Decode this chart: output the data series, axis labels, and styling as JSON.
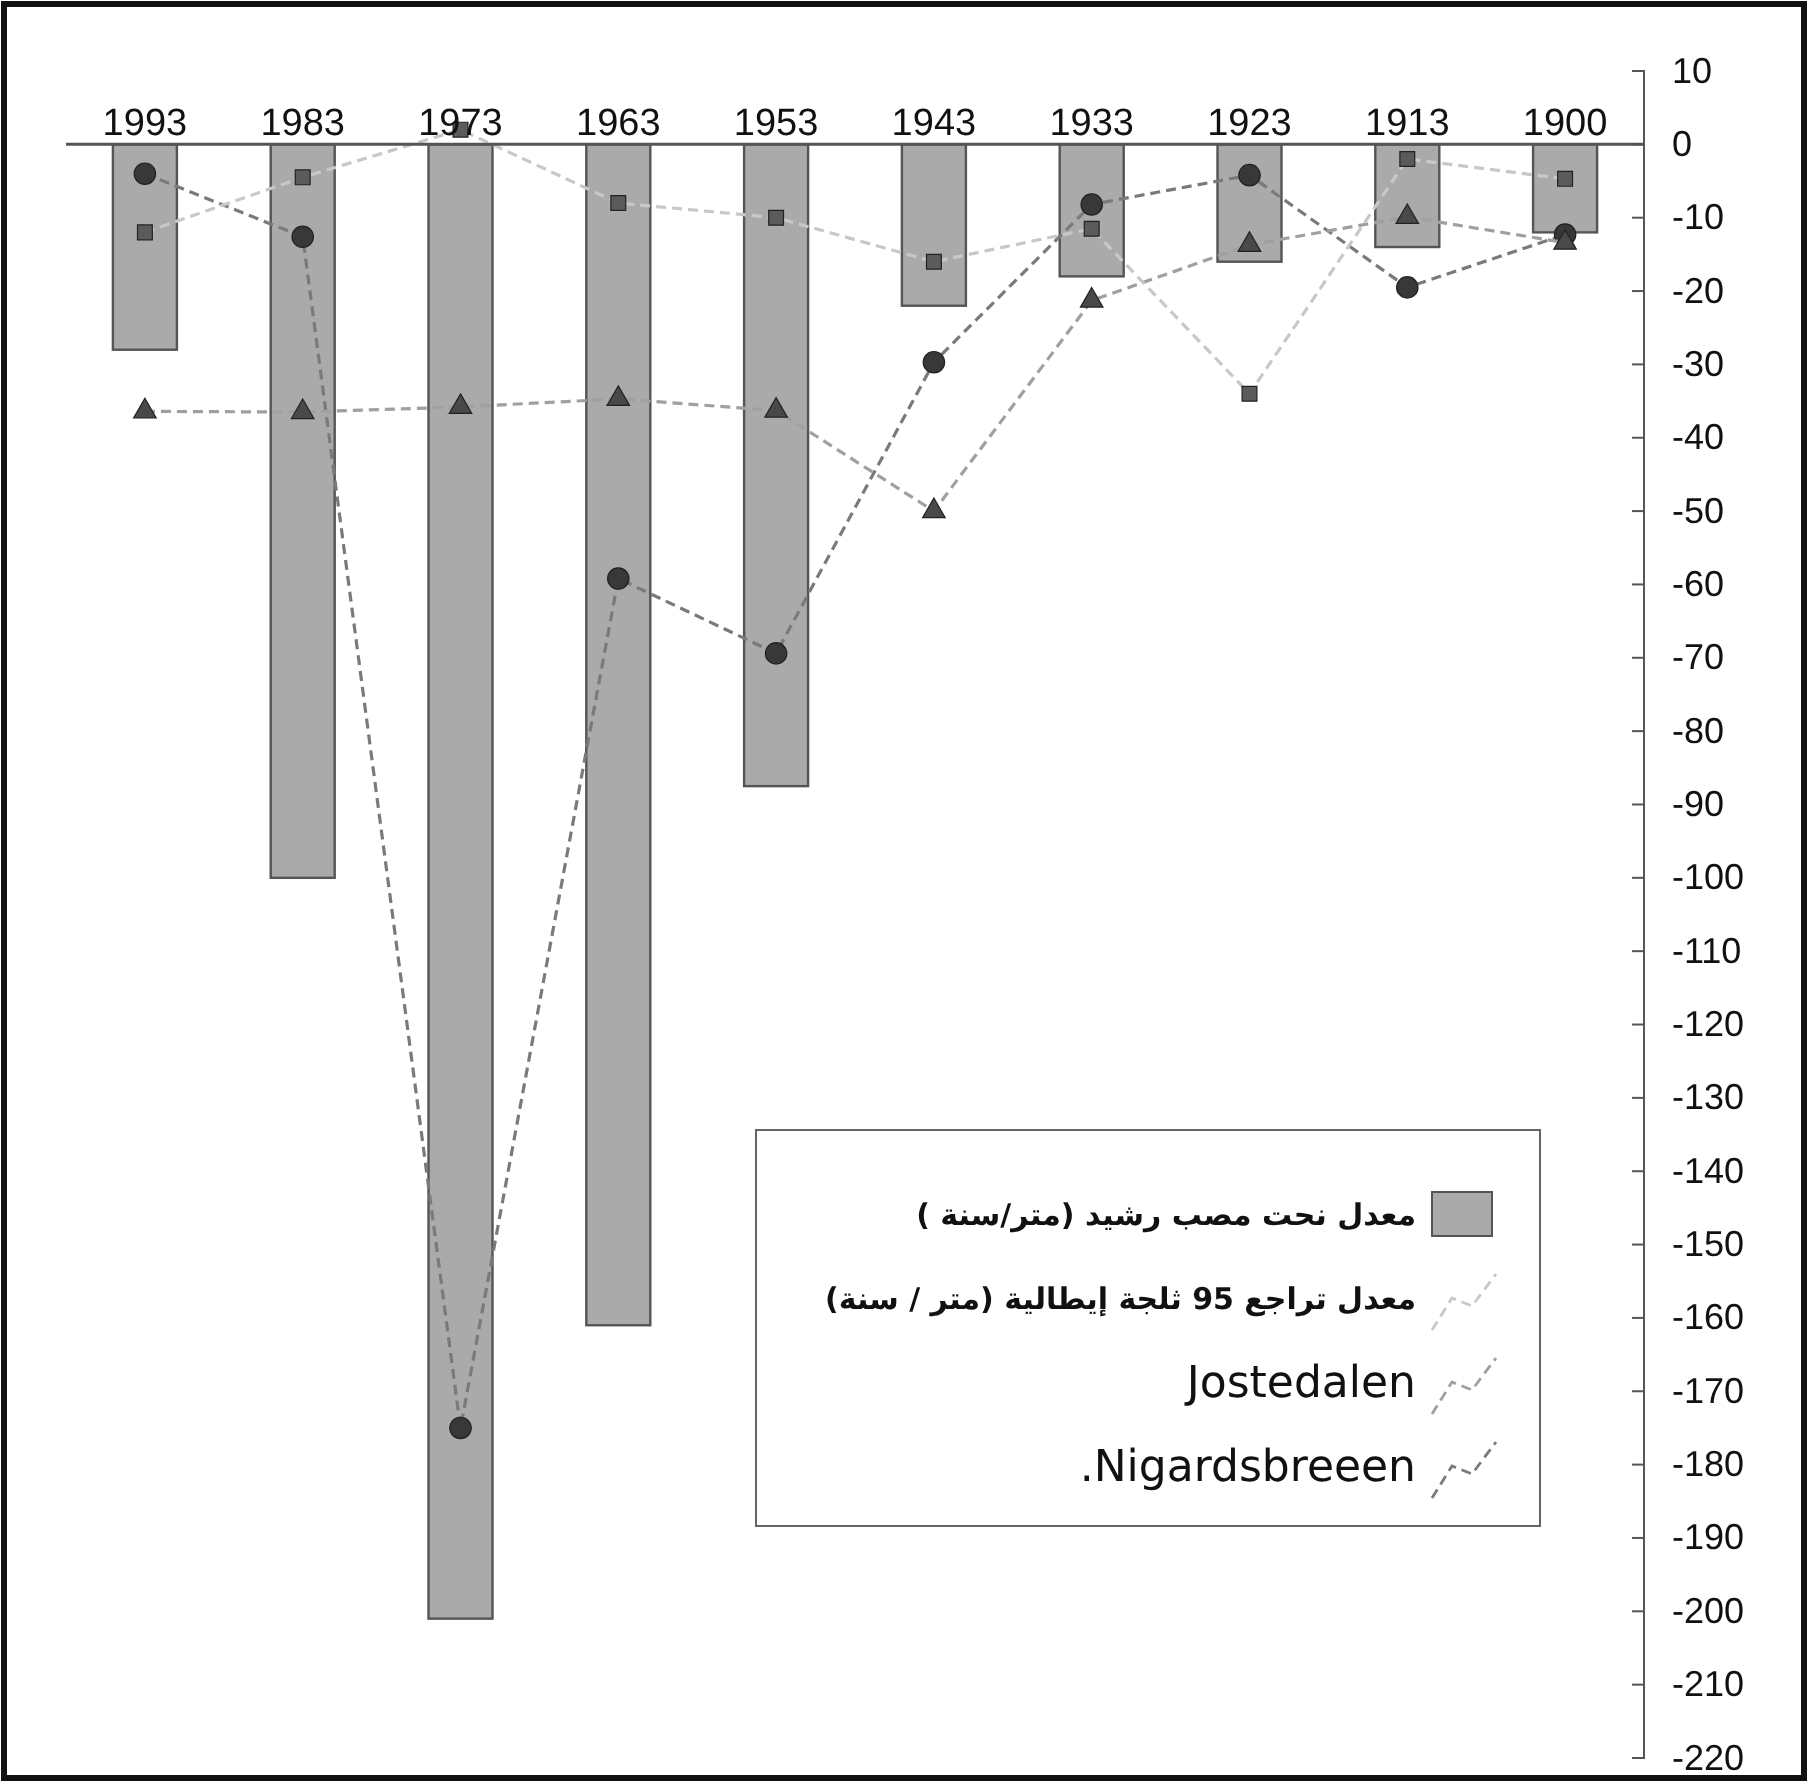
{
  "chart_data": {
    "type": "bar",
    "categories": [
      "1993",
      "1983",
      "1973",
      "1963",
      "1953",
      "1943",
      "1933",
      "1923",
      "1913",
      "1900"
    ],
    "ylim": [
      -220,
      10
    ],
    "yticks": [
      10,
      0,
      -10,
      -20,
      -30,
      -40,
      -50,
      -60,
      -70,
      -80,
      -90,
      -100,
      -110,
      -120,
      -130,
      -140,
      -150,
      -160,
      -170,
      -180,
      -190,
      -200,
      -210,
      -220
    ],
    "grid": false,
    "legend": "bottom right",
    "series": [
      {
        "name": "معدل نحت مصب رشيد (متر/سنة )",
        "color": "#aaaaaa",
        "values": [
          -28,
          -100,
          -201,
          -161,
          -87.5,
          -22,
          -18,
          -16,
          -14,
          -12
        ]
      },
      {
        "name": "معدل تراجع 95 ثلجة إيطالية (متر / سنة)",
        "type": "line",
        "color": "#c8c8c8",
        "marker": "square",
        "line_style": "dashed",
        "values": [
          -12,
          -4.5,
          2,
          -8,
          -10,
          -16,
          -11.5,
          -34,
          -2,
          -4.7
        ]
      },
      {
        "name": "Jostedalen",
        "type": "line",
        "color": "#a0a0a0",
        "marker": "triangle",
        "line_style": "dashed",
        "values": [
          -36.4,
          -36.5,
          -35.8,
          -34.7,
          -36.3,
          -50,
          -21.3,
          -13.7,
          -9.9,
          -13.4
        ]
      },
      {
        "name": ".Nigardsbreeen",
        "type": "line",
        "color": "#7a7a7a",
        "marker": "circle",
        "line_style": "dashed",
        "values": [
          -4,
          -12.6,
          -175,
          -59.2,
          -69.4,
          -29.7,
          -8.2,
          -4.2,
          -19.5,
          -12.3
        ]
      }
    ]
  }
}
